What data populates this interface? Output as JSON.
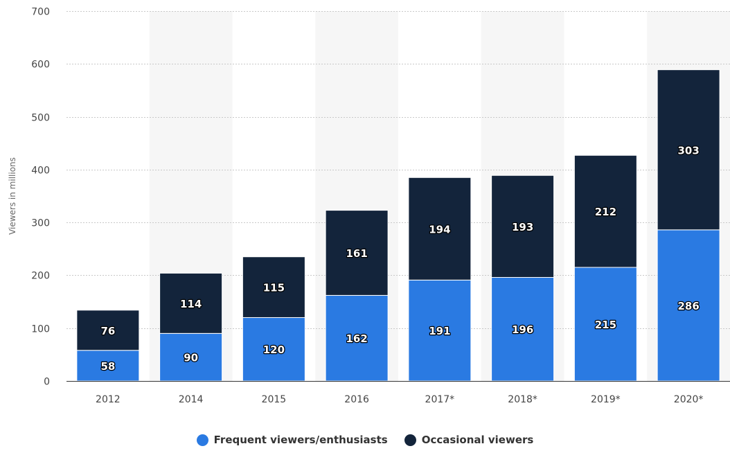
{
  "chart_data": {
    "type": "bar",
    "stacked": true,
    "categories": [
      "2012",
      "2014",
      "2015",
      "2016",
      "2017*",
      "2018*",
      "2019*",
      "2020*"
    ],
    "series": [
      {
        "name": "Frequent viewers/enthusiasts",
        "color": "#2a7ae2",
        "values": [
          58,
          90,
          120,
          162,
          191,
          196,
          215,
          286
        ]
      },
      {
        "name": "Occasional viewers",
        "color": "#13243b",
        "values": [
          76,
          114,
          115,
          161,
          194,
          193,
          212,
          303
        ]
      }
    ],
    "ylabel": "Viewers in millions",
    "ylim": [
      0,
      700
    ],
    "yticks": [
      0,
      100,
      200,
      300,
      400,
      500,
      600,
      700
    ],
    "grid": true,
    "legend_position": "bottom-center"
  }
}
